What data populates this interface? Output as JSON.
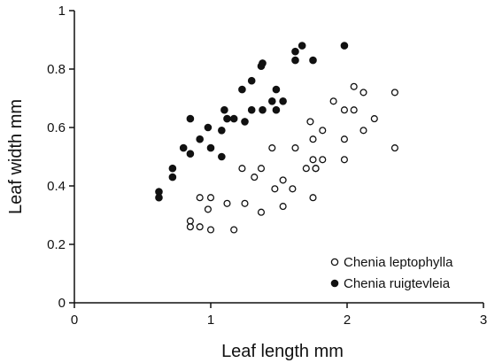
{
  "chart_data": {
    "type": "scatter",
    "title": "",
    "xlabel": "Leaf length mm",
    "ylabel": "Leaf width mm",
    "xlim": [
      0,
      3
    ],
    "ylim": [
      0,
      1
    ],
    "xticks": [
      "0",
      "1",
      "2",
      "3"
    ],
    "yticks": [
      "0",
      "0.2",
      "0.4",
      "0.6",
      "0.8",
      "1"
    ],
    "grid": false,
    "legend_position": "bottom-right",
    "series": [
      {
        "name": "Chenia leptophylla",
        "marker": "open-circle",
        "color": "#111111",
        "points": [
          [
            0.85,
            0.28
          ],
          [
            0.85,
            0.26
          ],
          [
            0.92,
            0.36
          ],
          [
            0.92,
            0.26
          ],
          [
            0.98,
            0.32
          ],
          [
            1.0,
            0.36
          ],
          [
            1.0,
            0.25
          ],
          [
            1.12,
            0.34
          ],
          [
            1.17,
            0.25
          ],
          [
            1.23,
            0.46
          ],
          [
            1.25,
            0.34
          ],
          [
            1.32,
            0.43
          ],
          [
            1.37,
            0.46
          ],
          [
            1.37,
            0.31
          ],
          [
            1.45,
            0.53
          ],
          [
            1.47,
            0.39
          ],
          [
            1.53,
            0.42
          ],
          [
            1.53,
            0.33
          ],
          [
            1.6,
            0.39
          ],
          [
            1.62,
            0.53
          ],
          [
            1.7,
            0.46
          ],
          [
            1.73,
            0.62
          ],
          [
            1.75,
            0.56
          ],
          [
            1.75,
            0.49
          ],
          [
            1.77,
            0.46
          ],
          [
            1.77,
            0.46
          ],
          [
            1.75,
            0.36
          ],
          [
            1.82,
            0.59
          ],
          [
            1.82,
            0.49
          ],
          [
            1.9,
            0.69
          ],
          [
            1.98,
            0.66
          ],
          [
            1.98,
            0.56
          ],
          [
            1.98,
            0.49
          ],
          [
            2.05,
            0.74
          ],
          [
            2.05,
            0.66
          ],
          [
            2.12,
            0.72
          ],
          [
            2.12,
            0.59
          ],
          [
            2.2,
            0.63
          ],
          [
            2.35,
            0.72
          ],
          [
            2.35,
            0.53
          ]
        ]
      },
      {
        "name": "Chenia ruigtevleia",
        "marker": "filled-circle",
        "color": "#111111",
        "points": [
          [
            0.62,
            0.38
          ],
          [
            0.62,
            0.36
          ],
          [
            0.72,
            0.46
          ],
          [
            0.72,
            0.43
          ],
          [
            0.8,
            0.53
          ],
          [
            0.85,
            0.63
          ],
          [
            0.85,
            0.51
          ],
          [
            0.92,
            0.56
          ],
          [
            0.98,
            0.6
          ],
          [
            1.0,
            0.53
          ],
          [
            1.08,
            0.59
          ],
          [
            1.08,
            0.5
          ],
          [
            1.1,
            0.66
          ],
          [
            1.12,
            0.63
          ],
          [
            1.17,
            0.63
          ],
          [
            1.23,
            0.73
          ],
          [
            1.25,
            0.62
          ],
          [
            1.3,
            0.76
          ],
          [
            1.3,
            0.66
          ],
          [
            1.37,
            0.81
          ],
          [
            1.38,
            0.82
          ],
          [
            1.38,
            0.66
          ],
          [
            1.45,
            0.69
          ],
          [
            1.48,
            0.73
          ],
          [
            1.48,
            0.66
          ],
          [
            1.53,
            0.69
          ],
          [
            1.62,
            0.86
          ],
          [
            1.62,
            0.83
          ],
          [
            1.67,
            0.88
          ],
          [
            1.75,
            0.83
          ],
          [
            1.98,
            0.88
          ]
        ]
      }
    ]
  }
}
